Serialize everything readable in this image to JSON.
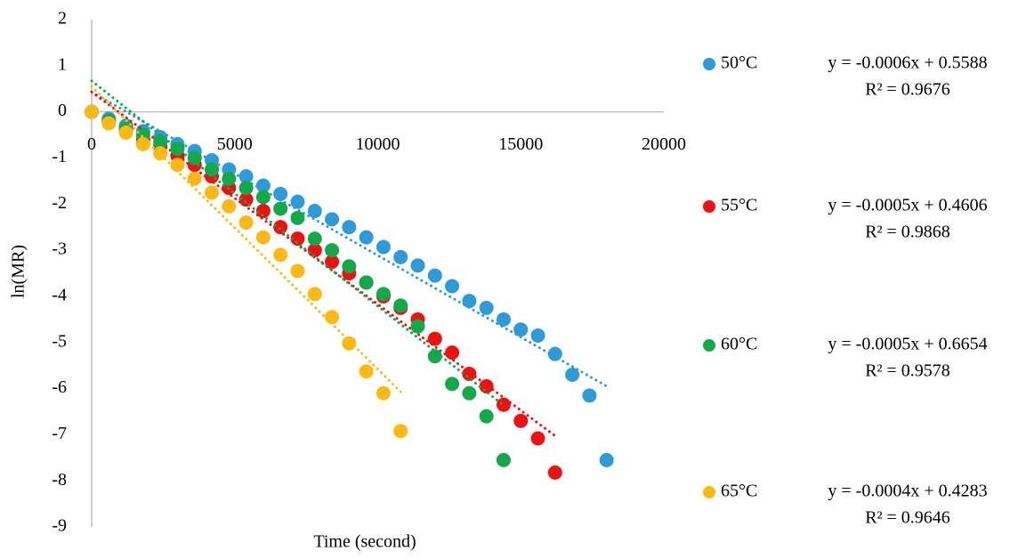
{
  "chart_data": {
    "type": "scatter",
    "x_label": "Time (second)",
    "y_label": "ln(MR)",
    "xlim": [
      0,
      20000
    ],
    "xticks": [
      0,
      5000,
      10000,
      15000,
      20000
    ],
    "ylim": [
      -9,
      2
    ],
    "yticks": [
      -9,
      -8,
      -7,
      -6,
      -5,
      -4,
      -3,
      -2,
      -1,
      0,
      1,
      2
    ],
    "grid": false,
    "trendline": "linear",
    "series": [
      {
        "name": "50°C",
        "color": "#2e9ad8",
        "equation": "y = -0.0006x + 0.5588",
        "r2": "R² = 0.9676",
        "x": [
          0,
          600,
          1200,
          1800,
          2400,
          3000,
          3600,
          4200,
          4800,
          5400,
          6000,
          6600,
          7200,
          7800,
          8400,
          9000,
          9600,
          10200,
          10800,
          11400,
          12000,
          12600,
          13200,
          13800,
          14400,
          15000,
          15600,
          16200,
          16800,
          17400,
          18000
        ],
        "values": [
          0,
          -0.15,
          -0.3,
          -0.42,
          -0.55,
          -0.7,
          -0.85,
          -1.05,
          -1.25,
          -1.4,
          -1.6,
          -1.78,
          -1.95,
          -2.15,
          -2.33,
          -2.5,
          -2.72,
          -2.93,
          -3.15,
          -3.33,
          -3.55,
          -3.78,
          -4.1,
          -4.25,
          -4.5,
          -4.72,
          -4.85,
          -5.25,
          -5.7,
          -6.15,
          -7.55
        ]
      },
      {
        "name": "55°C",
        "color": "#ee1111",
        "equation": "y = -0.0005x + 0.4606",
        "r2": "R² = 0.9868",
        "x": [
          0,
          600,
          1200,
          1800,
          2400,
          3000,
          3600,
          4200,
          4800,
          5400,
          6000,
          6600,
          7200,
          7800,
          8400,
          9000,
          9600,
          10200,
          10800,
          11400,
          12000,
          12600,
          13200,
          13800,
          14400,
          15000,
          15600,
          16200
        ],
        "values": [
          0,
          -0.2,
          -0.4,
          -0.6,
          -0.75,
          -0.95,
          -1.15,
          -1.4,
          -1.65,
          -1.9,
          -2.15,
          -2.5,
          -2.75,
          -3.0,
          -3.25,
          -3.5,
          -3.7,
          -4.0,
          -4.25,
          -4.5,
          -4.92,
          -5.22,
          -5.68,
          -5.95,
          -6.35,
          -6.7,
          -7.08,
          -7.82
        ]
      },
      {
        "name": "60°C",
        "color": "#13a84a",
        "equation": "y = -0.0005x + 0.6654",
        "r2": "R² = 0.9578",
        "x": [
          0,
          600,
          1200,
          1800,
          2400,
          3000,
          3600,
          4200,
          4800,
          5400,
          6000,
          6600,
          7200,
          7800,
          8400,
          9000,
          9600,
          10200,
          10800,
          11400,
          12000,
          12600,
          13200,
          13800,
          14400
        ],
        "values": [
          0,
          -0.2,
          -0.35,
          -0.5,
          -0.65,
          -0.8,
          -1.0,
          -1.25,
          -1.45,
          -1.65,
          -1.85,
          -2.1,
          -2.3,
          -2.75,
          -3.0,
          -3.35,
          -3.7,
          -3.95,
          -4.2,
          -4.65,
          -5.3,
          -5.9,
          -6.1,
          -6.6,
          -7.55
        ]
      },
      {
        "name": "65°C",
        "color": "#fdb913",
        "equation": "y = -0.0004x + 0.4283",
        "r2": "R² = 0.9646",
        "x": [
          0,
          600,
          1200,
          1800,
          2400,
          3000,
          3600,
          4200,
          4800,
          5400,
          6000,
          6600,
          7200,
          7800,
          8400,
          9000,
          9600,
          10200,
          10800
        ],
        "values": [
          0,
          -0.25,
          -0.45,
          -0.7,
          -0.9,
          -1.15,
          -1.45,
          -1.75,
          -2.05,
          -2.4,
          -2.72,
          -3.1,
          -3.45,
          -3.95,
          -4.45,
          -5.02,
          -5.63,
          -6.1,
          -6.92
        ]
      }
    ]
  }
}
